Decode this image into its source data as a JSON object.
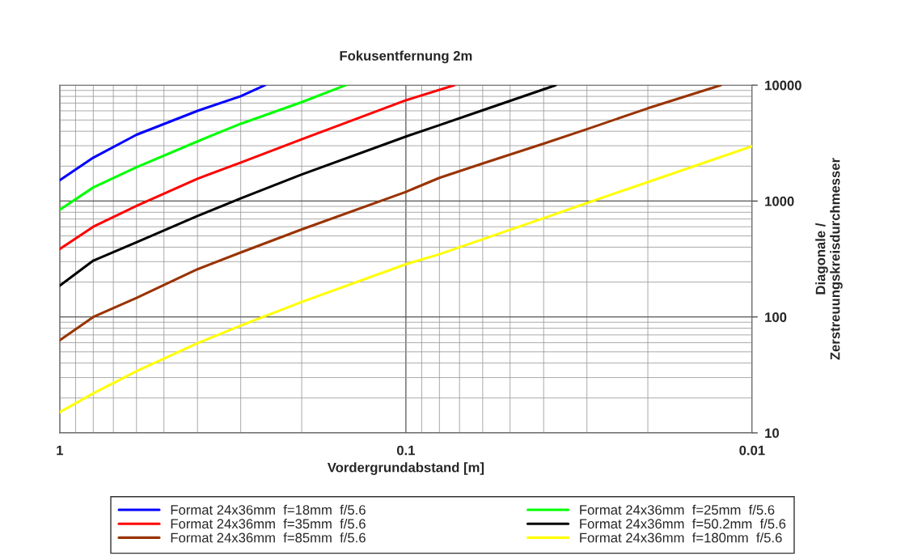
{
  "chart_data": {
    "type": "line",
    "title": "Fokusentfernung 2m",
    "xlabel": "Vordergrundabstand [m]",
    "ylabel": "Diagonale /\nZerstreuungskreisdurchmesser",
    "log": "xy",
    "grid": true,
    "legend": "bottom",
    "marker": "none",
    "line_style": "solid",
    "xlim": [
      1,
      0.01
    ],
    "xticks": [
      1,
      0.1,
      0.01
    ],
    "ylim": [
      10,
      10000
    ],
    "yticks": [
      10,
      100,
      1000,
      10000
    ],
    "series": [
      {
        "name": "Format 24x36mm  f=18mm  f/5.6",
        "color": "#0000ff",
        "x": [
          1,
          0.8,
          0.6,
          0.4,
          0.3,
          0.255
        ],
        "values": [
          1510,
          2366,
          3733,
          6000,
          8020,
          10000
        ]
      },
      {
        "name": "Format 24x36mm  f=25mm  f/5.6",
        "color": "#00ff00",
        "x": [
          1,
          0.8,
          0.6,
          0.4,
          0.3,
          0.2,
          0.149
        ],
        "values": [
          840,
          1310,
          1960,
          3270,
          4640,
          7130,
          10000
        ]
      },
      {
        "name": "Format 24x36mm  f=35mm  f/5.6",
        "color": "#ff0000",
        "x": [
          1,
          0.8,
          0.6,
          0.4,
          0.3,
          0.2,
          0.1,
          0.0724
        ],
        "values": [
          385,
          600,
          908,
          1556,
          2150,
          3410,
          7400,
          10000
        ]
      },
      {
        "name": "Format 24x36mm  f=50.2mm  f/5.6",
        "color": "#000000",
        "x": [
          1,
          0.8,
          0.6,
          0.4,
          0.3,
          0.2,
          0.1,
          0.08,
          0.06,
          0.0369
        ],
        "values": [
          186,
          306,
          441,
          743,
          1054,
          1694,
          3600,
          4520,
          6070,
          10000
        ]
      },
      {
        "name": "Format 24x36mm  f=85mm  f/5.6",
        "color": "#993300",
        "x": [
          1,
          0.8,
          0.6,
          0.4,
          0.3,
          0.2,
          0.1,
          0.08,
          0.06,
          0.04,
          0.03,
          0.02,
          0.0123
        ],
        "values": [
          63,
          100,
          146,
          258,
          360,
          569,
          1200,
          1585,
          2110,
          3130,
          4170,
          6310,
          10000
        ]
      },
      {
        "name": "Format 24x36mm  f=180mm  f/5.6",
        "color": "#ffff00",
        "x": [
          1,
          0.8,
          0.6,
          0.4,
          0.3,
          0.2,
          0.1,
          0.08,
          0.06,
          0.04,
          0.03,
          0.02,
          0.01
        ],
        "values": [
          15.1,
          21.9,
          34.1,
          59.3,
          84.1,
          134.6,
          285,
          348,
          468,
          711,
          962,
          1456,
          2970
        ]
      }
    ]
  }
}
